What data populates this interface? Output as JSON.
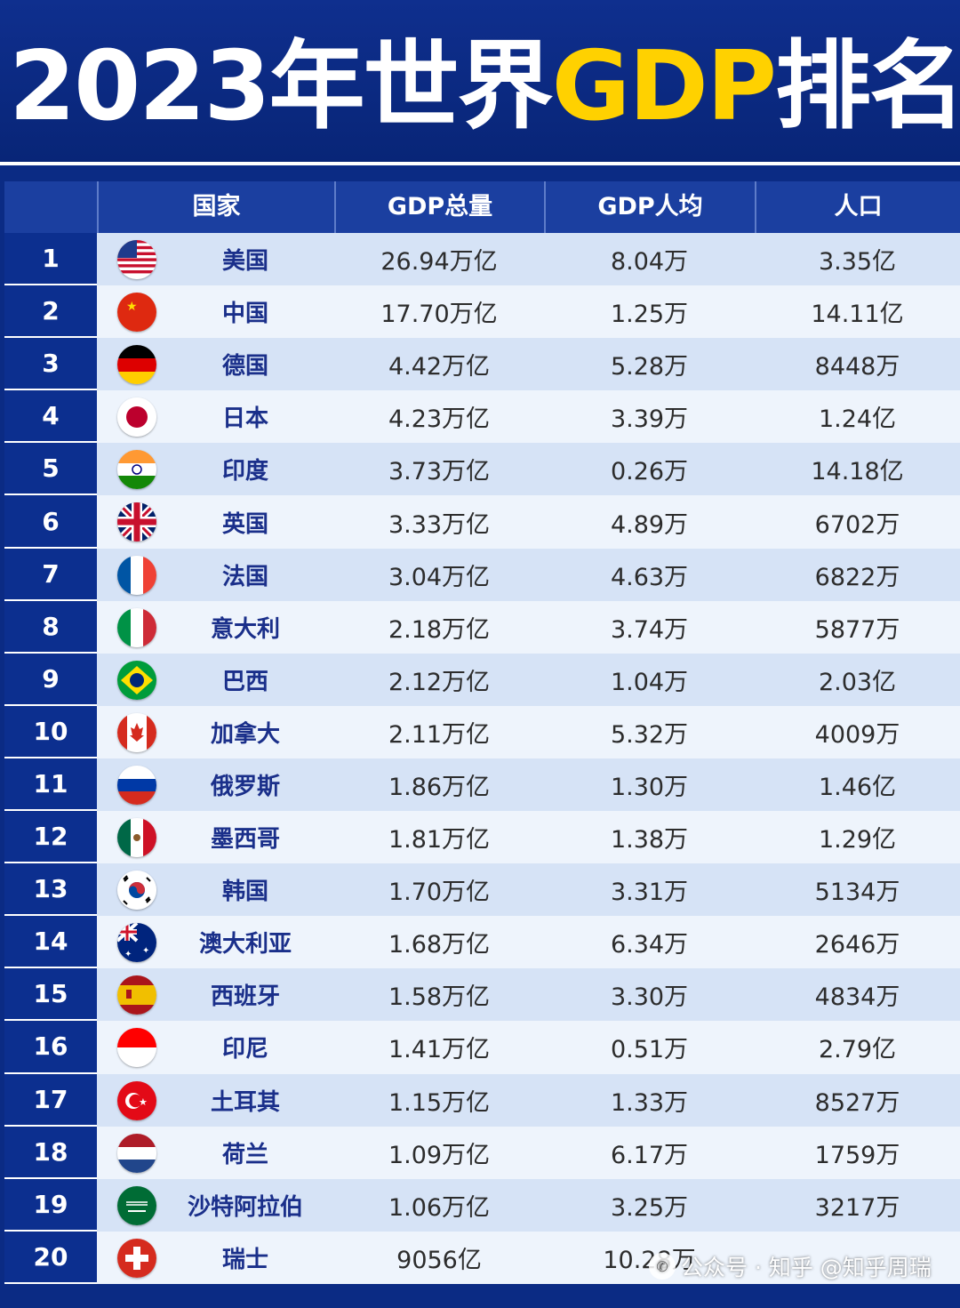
{
  "title": {
    "prefix": "2023年世界",
    "highlight": "GDP",
    "suffix": "排名"
  },
  "header": {
    "rank": "",
    "country": "国家",
    "gdp_total": "GDP总量",
    "gdp_per_capita": "GDP人均",
    "population": "人口"
  },
  "rows": [
    {
      "rank": "1",
      "country": "美国",
      "gdp": "26.94万亿",
      "per_capita": "8.04万",
      "population": "3.35亿",
      "flag": "us-flag-icon"
    },
    {
      "rank": "2",
      "country": "中国",
      "gdp": "17.70万亿",
      "per_capita": "1.25万",
      "population": "14.11亿",
      "flag": "cn-flag-icon"
    },
    {
      "rank": "3",
      "country": "德国",
      "gdp": "4.42万亿",
      "per_capita": "5.28万",
      "population": "8448万",
      "flag": "de-flag-icon"
    },
    {
      "rank": "4",
      "country": "日本",
      "gdp": "4.23万亿",
      "per_capita": "3.39万",
      "population": "1.24亿",
      "flag": "jp-flag-icon"
    },
    {
      "rank": "5",
      "country": "印度",
      "gdp": "3.73万亿",
      "per_capita": "0.26万",
      "population": "14.18亿",
      "flag": "in-flag-icon"
    },
    {
      "rank": "6",
      "country": "英国",
      "gdp": "3.33万亿",
      "per_capita": "4.89万",
      "population": "6702万",
      "flag": "gb-flag-icon"
    },
    {
      "rank": "7",
      "country": "法国",
      "gdp": "3.04万亿",
      "per_capita": "4.63万",
      "population": "6822万",
      "flag": "fr-flag-icon"
    },
    {
      "rank": "8",
      "country": "意大利",
      "gdp": "2.18万亿",
      "per_capita": "3.74万",
      "population": "5877万",
      "flag": "it-flag-icon"
    },
    {
      "rank": "9",
      "country": "巴西",
      "gdp": "2.12万亿",
      "per_capita": "1.04万",
      "population": "2.03亿",
      "flag": "br-flag-icon"
    },
    {
      "rank": "10",
      "country": "加拿大",
      "gdp": "2.11万亿",
      "per_capita": "5.32万",
      "population": "4009万",
      "flag": "ca-flag-icon"
    },
    {
      "rank": "11",
      "country": "俄罗斯",
      "gdp": "1.86万亿",
      "per_capita": "1.30万",
      "population": "1.46亿",
      "flag": "ru-flag-icon"
    },
    {
      "rank": "12",
      "country": "墨西哥",
      "gdp": "1.81万亿",
      "per_capita": "1.38万",
      "population": "1.29亿",
      "flag": "mx-flag-icon"
    },
    {
      "rank": "13",
      "country": "韩国",
      "gdp": "1.70万亿",
      "per_capita": "3.31万",
      "population": "5134万",
      "flag": "kr-flag-icon"
    },
    {
      "rank": "14",
      "country": "澳大利亚",
      "gdp": "1.68万亿",
      "per_capita": "6.34万",
      "population": "2646万",
      "flag": "au-flag-icon"
    },
    {
      "rank": "15",
      "country": "西班牙",
      "gdp": "1.58万亿",
      "per_capita": "3.30万",
      "population": "4834万",
      "flag": "es-flag-icon"
    },
    {
      "rank": "16",
      "country": "印尼",
      "gdp": "1.41万亿",
      "per_capita": "0.51万",
      "population": "2.79亿",
      "flag": "id-flag-icon"
    },
    {
      "rank": "17",
      "country": "土耳其",
      "gdp": "1.15万亿",
      "per_capita": "1.33万",
      "population": "8527万",
      "flag": "tr-flag-icon"
    },
    {
      "rank": "18",
      "country": "荷兰",
      "gdp": "1.09万亿",
      "per_capita": "6.17万",
      "population": "1759万",
      "flag": "nl-flag-icon"
    },
    {
      "rank": "19",
      "country": "沙特阿拉伯",
      "gdp": "1.06万亿",
      "per_capita": "3.25万",
      "population": "3217万",
      "flag": "sa-flag-icon"
    },
    {
      "rank": "20",
      "country": "瑞士",
      "gdp": "9056亿",
      "per_capita": "10.28万",
      "population": "",
      "flag": "ch-flag-icon"
    }
  ],
  "watermark": {
    "text": "公众号 · 知乎 @知乎周瑞",
    "icon": "wechat-icon"
  }
}
